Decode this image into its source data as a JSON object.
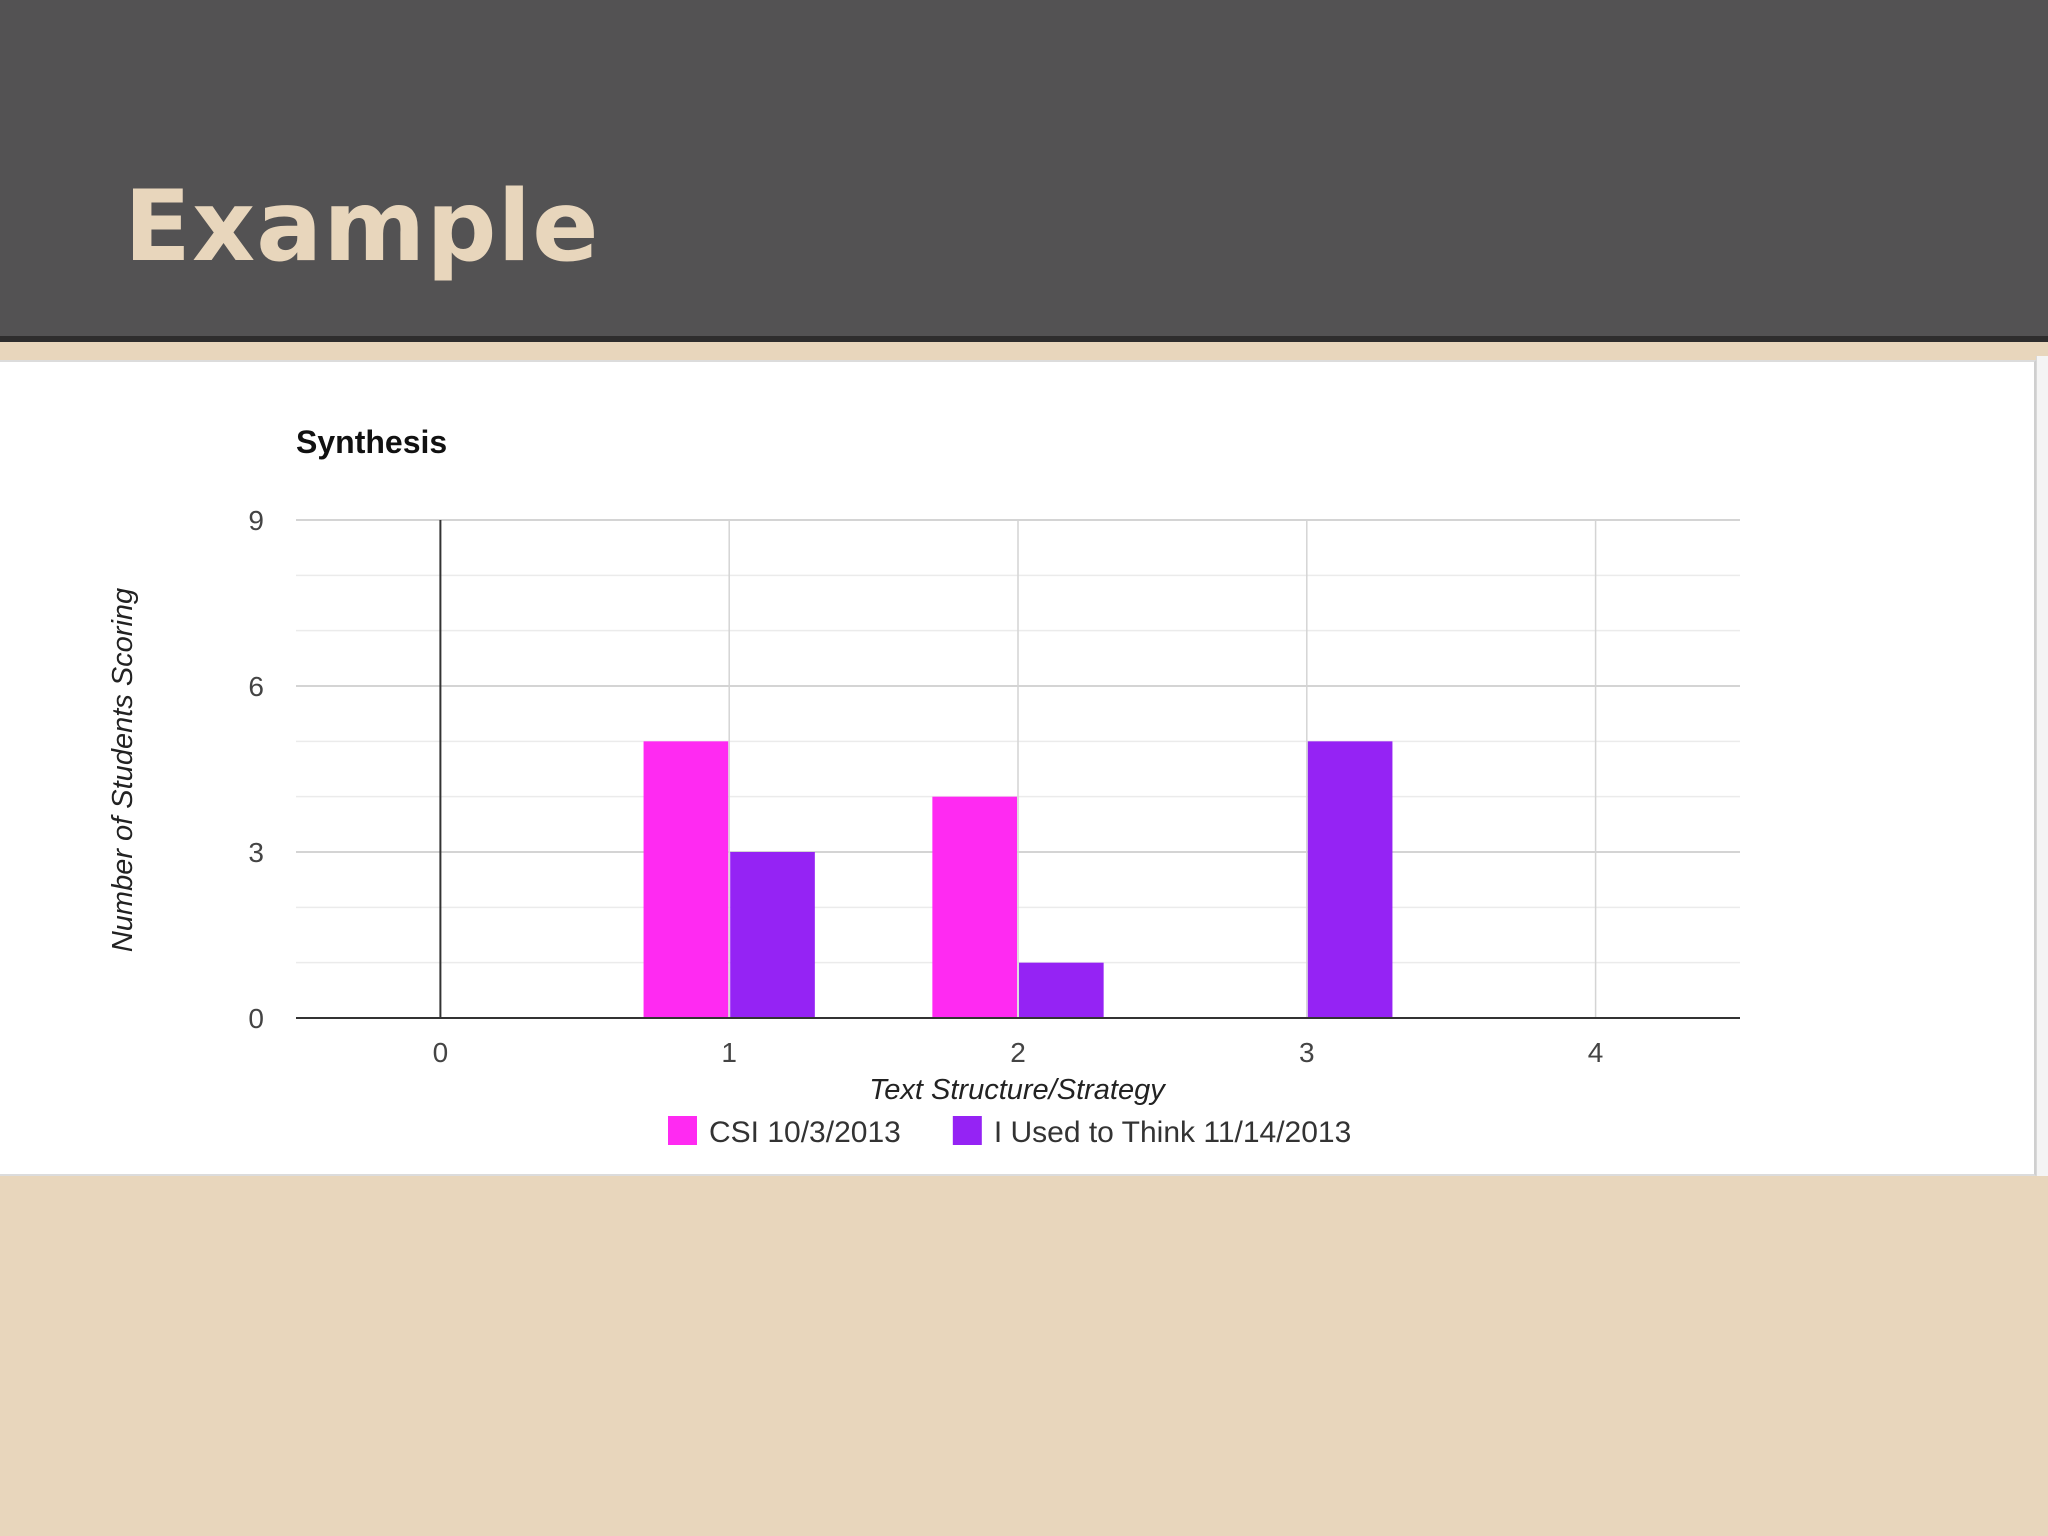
{
  "slide": {
    "title": "Example"
  },
  "colors": {
    "header_bg": "#535253",
    "title_text": "#e8d6bc",
    "slide_bg": "#e8d6bc",
    "series_1": "#ff2af2",
    "series_2": "#9523f4"
  },
  "chart_data": {
    "type": "bar",
    "title": "Synthesis",
    "xlabel": "Text Structure/Strategy",
    "ylabel": "Number of Students Scoring",
    "categories": [
      "0",
      "1",
      "2",
      "3",
      "4"
    ],
    "x_ticks": [
      "0",
      "1",
      "2",
      "3",
      "4"
    ],
    "y_ticks": [
      "0",
      "3",
      "6",
      "9"
    ],
    "ylim": [
      0,
      9
    ],
    "xlim": [
      -0.5,
      4.5
    ],
    "grid": true,
    "legend_position": "bottom",
    "series": [
      {
        "name": "CSI 10/3/2013",
        "color": "#ff2af2",
        "values": [
          0,
          5,
          4,
          0,
          0
        ]
      },
      {
        "name": "I Used to Think 11/14/2013",
        "color": "#9523f4",
        "values": [
          0,
          3,
          1,
          5,
          0
        ]
      }
    ]
  }
}
